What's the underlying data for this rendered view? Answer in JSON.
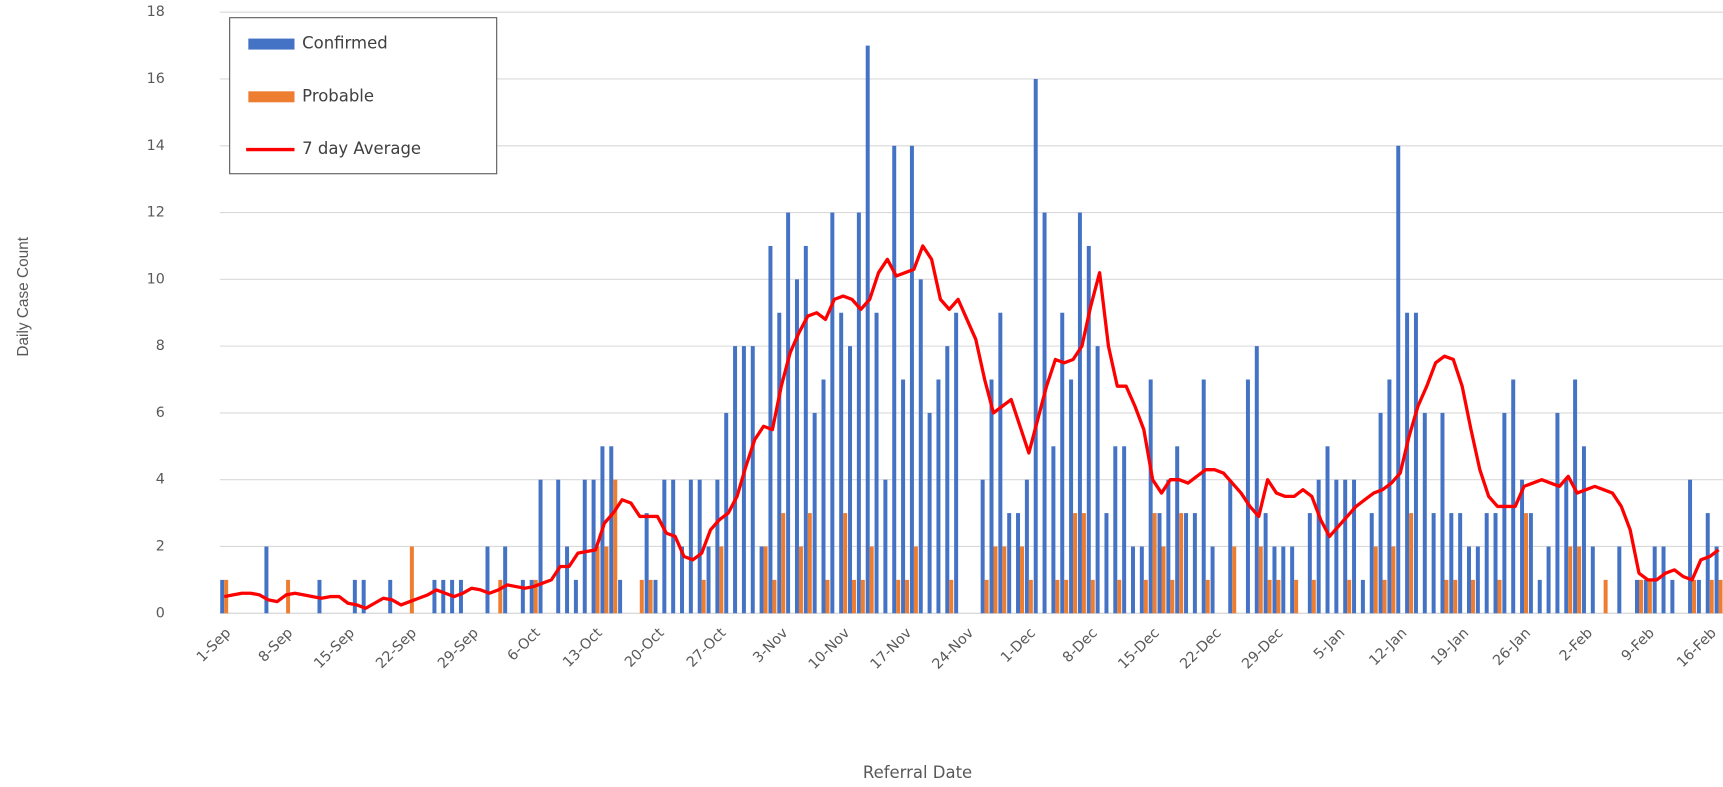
{
  "chart_data": {
    "type": "bar",
    "x_axis_title": "Referral Date",
    "y_axis_title": "Daily Case Count",
    "categories": [
      "1-Sep",
      null,
      null,
      null,
      null,
      null,
      null,
      "8-Sep",
      null,
      null,
      null,
      null,
      null,
      null,
      "15-Sep",
      null,
      null,
      null,
      null,
      null,
      null,
      "22-Sep",
      null,
      null,
      null,
      null,
      null,
      null,
      "29-Sep",
      null,
      null,
      null,
      null,
      null,
      null,
      "6-Oct",
      null,
      null,
      null,
      null,
      null,
      null,
      "13-Oct",
      null,
      null,
      null,
      null,
      null,
      null,
      "20-Oct",
      null,
      null,
      null,
      null,
      null,
      null,
      "27-Oct",
      null,
      null,
      null,
      null,
      null,
      null,
      "3-Nov",
      null,
      null,
      null,
      null,
      null,
      null,
      "10-Nov",
      null,
      null,
      null,
      null,
      null,
      null,
      "17-Nov",
      null,
      null,
      null,
      null,
      null,
      null,
      "24-Nov",
      null,
      null,
      null,
      null,
      null,
      null,
      "1-Dec",
      null,
      null,
      null,
      null,
      null,
      null,
      "8-Dec",
      null,
      null,
      null,
      null,
      null,
      null,
      "15-Dec",
      null,
      null,
      null,
      null,
      null,
      null,
      "22-Dec",
      null,
      null,
      null,
      null,
      null,
      null,
      "29-Dec",
      null,
      null,
      null,
      null,
      null,
      null,
      "5-Jan",
      null,
      null,
      null,
      null,
      null,
      null,
      "12-Jan",
      null,
      null,
      null,
      null,
      null,
      null,
      "19-Jan",
      null,
      null,
      null,
      null,
      null,
      null,
      "26-Jan",
      null,
      null,
      null,
      null,
      null,
      null,
      "2-Feb",
      null,
      null,
      null,
      null,
      null,
      null,
      "9-Feb",
      null,
      null,
      null,
      null,
      null,
      null,
      "16-Feb",
      null
    ],
    "series": [
      {
        "name": "Confirmed",
        "color": "#4472c4",
        "type": "bar",
        "values": [
          1,
          0,
          0,
          0,
          0,
          2,
          0,
          0,
          0,
          0,
          0,
          1,
          0,
          0,
          0,
          1,
          1,
          0,
          0,
          1,
          0,
          0,
          0,
          0,
          1,
          1,
          1,
          1,
          0,
          0,
          2,
          0,
          2,
          0,
          1,
          1,
          4,
          0,
          4,
          2,
          1,
          4,
          4,
          5,
          5,
          1,
          0,
          0,
          3,
          1,
          4,
          4,
          2,
          4,
          4,
          2,
          4,
          6,
          8,
          8,
          8,
          2,
          11,
          9,
          12,
          10,
          11,
          6,
          7,
          12,
          9,
          8,
          12,
          17,
          9,
          4,
          14,
          7,
          14,
          10,
          6,
          7,
          8,
          9,
          0,
          0,
          4,
          7,
          9,
          3,
          3,
          4,
          16,
          12,
          5,
          9,
          7,
          12,
          11,
          8,
          3,
          5,
          5,
          2,
          2,
          7,
          3,
          4,
          5,
          3,
          3,
          7,
          2,
          0,
          4,
          0,
          7,
          8,
          3,
          2,
          2,
          2,
          0,
          3,
          4,
          5,
          4,
          4,
          4,
          1,
          3,
          6,
          7,
          14,
          9,
          9,
          6,
          3,
          6,
          3,
          3,
          2,
          2,
          3,
          3,
          6,
          7,
          4,
          3,
          1,
          2,
          6,
          4,
          7,
          5,
          2,
          0,
          0,
          2,
          0,
          1,
          1,
          2,
          2,
          1,
          0,
          4,
          1,
          3,
          2
        ]
      },
      {
        "name": "Probable",
        "color": "#ed7d31",
        "type": "bar",
        "values": [
          1,
          0,
          0,
          0,
          0,
          0,
          0,
          1,
          0,
          0,
          0,
          0,
          0,
          0,
          0,
          0,
          0,
          0,
          0,
          0,
          0,
          2,
          0,
          0,
          0,
          0,
          0,
          0,
          0,
          0,
          0,
          1,
          0,
          0,
          0,
          1,
          0,
          0,
          0,
          0,
          0,
          0,
          2,
          2,
          4,
          0,
          0,
          1,
          1,
          0,
          0,
          0,
          0,
          0,
          1,
          0,
          2,
          0,
          0,
          0,
          0,
          2,
          1,
          3,
          0,
          2,
          3,
          0,
          1,
          0,
          3,
          1,
          1,
          2,
          0,
          0,
          1,
          1,
          2,
          0,
          0,
          0,
          1,
          0,
          0,
          0,
          1,
          2,
          2,
          0,
          2,
          1,
          0,
          0,
          1,
          1,
          3,
          3,
          1,
          0,
          0,
          1,
          0,
          0,
          1,
          3,
          2,
          1,
          3,
          0,
          0,
          1,
          0,
          0,
          2,
          0,
          0,
          2,
          1,
          1,
          0,
          1,
          0,
          1,
          0,
          0,
          0,
          1,
          0,
          0,
          2,
          1,
          2,
          0,
          3,
          0,
          0,
          0,
          1,
          1,
          0,
          1,
          0,
          0,
          1,
          0,
          0,
          3,
          0,
          0,
          0,
          0,
          2,
          2,
          0,
          0,
          1,
          0,
          0,
          0,
          1,
          1,
          0,
          0,
          0,
          0,
          1,
          0,
          1,
          1
        ]
      },
      {
        "name": "7 day Average",
        "color": "#ff0000",
        "type": "line",
        "values": [
          0.5,
          0.55,
          0.6,
          0.6,
          0.55,
          0.4,
          0.35,
          0.55,
          0.6,
          0.55,
          0.5,
          0.45,
          0.5,
          0.5,
          0.3,
          0.25,
          0.15,
          0.3,
          0.45,
          0.4,
          0.25,
          0.35,
          0.45,
          0.55,
          0.7,
          0.6,
          0.5,
          0.6,
          0.75,
          0.7,
          0.6,
          0.7,
          0.85,
          0.8,
          0.75,
          0.8,
          0.9,
          1.0,
          1.4,
          1.4,
          1.8,
          1.85,
          1.9,
          2.7,
          3.0,
          3.4,
          3.3,
          2.9,
          2.9,
          2.9,
          2.4,
          2.3,
          1.7,
          1.6,
          1.8,
          2.5,
          2.8,
          3.0,
          3.5,
          4.4,
          5.2,
          5.6,
          5.5,
          6.8,
          7.8,
          8.4,
          8.9,
          9.0,
          8.8,
          9.4,
          9.5,
          9.4,
          9.1,
          9.4,
          10.2,
          10.6,
          10.1,
          10.2,
          10.3,
          11.0,
          10.6,
          9.4,
          9.1,
          9.4,
          8.8,
          8.2,
          7.0,
          6.0,
          6.2,
          6.4,
          5.6,
          4.8,
          5.8,
          6.8,
          7.6,
          7.5,
          7.6,
          8.0,
          9.2,
          10.2,
          8.0,
          6.8,
          6.8,
          6.2,
          5.5,
          4.0,
          3.6,
          4.0,
          4.0,
          3.9,
          4.1,
          4.3,
          4.3,
          4.2,
          3.9,
          3.6,
          3.2,
          2.9,
          4.0,
          3.6,
          3.5,
          3.5,
          3.7,
          3.5,
          2.8,
          2.3,
          2.6,
          2.9,
          3.2,
          3.4,
          3.6,
          3.7,
          3.9,
          4.2,
          5.3,
          6.2,
          6.8,
          7.5,
          7.7,
          7.6,
          6.8,
          5.5,
          4.3,
          3.5,
          3.2,
          3.2,
          3.2,
          3.8,
          3.9,
          4.0,
          3.9,
          3.8,
          4.1,
          3.6,
          3.7,
          3.8,
          3.7,
          3.6,
          3.2,
          2.5,
          1.2,
          1.0,
          1.0,
          1.2,
          1.3,
          1.1,
          1.0,
          1.6,
          1.7,
          1.9
        ]
      }
    ],
    "ylim": [
      0,
      18
    ],
    "yticks": [
      0,
      2,
      4,
      6,
      8,
      10,
      12,
      14,
      16,
      18
    ],
    "grid": true,
    "legend": "top-left"
  }
}
